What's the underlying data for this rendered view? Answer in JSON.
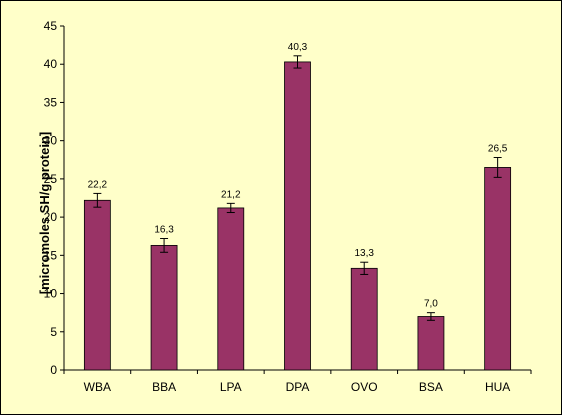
{
  "chart_data": {
    "type": "bar",
    "title": "",
    "xlabel": "",
    "ylabel": "[micromoles SH/g protein]",
    "ylim": [
      0,
      45
    ],
    "yticks": [
      0,
      5,
      10,
      15,
      20,
      25,
      30,
      35,
      40,
      45
    ],
    "grid": false,
    "legend": "none",
    "categories": [
      "WBA",
      "BBA",
      "LPA",
      "DPA",
      "OVO",
      "BSA",
      "HUA"
    ],
    "values": [
      22.2,
      16.3,
      21.2,
      40.3,
      13.3,
      7.0,
      26.5
    ],
    "errors": [
      0.9,
      0.9,
      0.6,
      0.8,
      0.8,
      0.5,
      1.3
    ],
    "data_labels": [
      "22,2",
      "16,3",
      "21,2",
      "40,3",
      "13,3",
      "7,0",
      "26,5"
    ],
    "colors": {
      "bar": "#993366",
      "background": "#ffffc9",
      "axis": "#000000"
    }
  }
}
